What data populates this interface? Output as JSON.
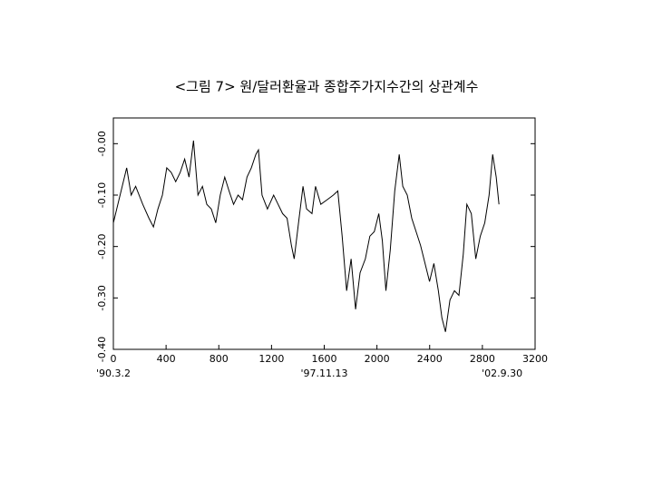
{
  "chart_data": {
    "type": "line",
    "title": "<그림 7> 원/달러환율과 종합주가지수간의 상관계수",
    "x": [
      0,
      34,
      101,
      135,
      169,
      223,
      270,
      304,
      338,
      372,
      405,
      439,
      473,
      507,
      541,
      574,
      608,
      642,
      676,
      709,
      743,
      777,
      811,
      845,
      878,
      912,
      946,
      980,
      1014,
      1047,
      1081,
      1101,
      1128,
      1169,
      1216,
      1250,
      1284,
      1318,
      1351,
      1372,
      1405,
      1439,
      1466,
      1507,
      1534,
      1574,
      1622,
      1669,
      1703,
      1736,
      1770,
      1804,
      1838,
      1872,
      1912,
      1946,
      1980,
      2014,
      2041,
      2068,
      2101,
      2135,
      2169,
      2196,
      2230,
      2264,
      2297,
      2331,
      2365,
      2399,
      2432,
      2466,
      2493,
      2520,
      2554,
      2588,
      2622,
      2655,
      2682,
      2716,
      2750,
      2784,
      2818,
      2851,
      2878,
      2905,
      2926
    ],
    "series": [
      {
        "color": "#000000",
        "values": [
          -0.154,
          -0.118,
          -0.047,
          -0.1,
          -0.083,
          -0.118,
          -0.145,
          -0.162,
          -0.127,
          -0.1,
          -0.047,
          -0.056,
          -0.074,
          -0.056,
          -0.03,
          -0.065,
          0.006,
          -0.1,
          -0.083,
          -0.118,
          -0.127,
          -0.154,
          -0.1,
          -0.065,
          -0.092,
          -0.118,
          -0.1,
          -0.109,
          -0.065,
          -0.047,
          -0.021,
          -0.012,
          -0.1,
          -0.127,
          -0.1,
          -0.118,
          -0.136,
          -0.145,
          -0.198,
          -0.224,
          -0.154,
          -0.083,
          -0.127,
          -0.136,
          -0.083,
          -0.118,
          -0.109,
          -0.1,
          -0.092,
          -0.18,
          -0.286,
          -0.224,
          -0.322,
          -0.251,
          -0.224,
          -0.18,
          -0.171,
          -0.136,
          -0.189,
          -0.286,
          -0.207,
          -0.092,
          -0.021,
          -0.083,
          -0.1,
          -0.145,
          -0.171,
          -0.198,
          -0.233,
          -0.268,
          -0.233,
          -0.286,
          -0.339,
          -0.366,
          -0.304,
          -0.286,
          -0.295,
          -0.215,
          -0.118,
          -0.136,
          -0.224,
          -0.18,
          -0.154,
          -0.1,
          -0.021,
          -0.065,
          -0.118
        ]
      }
    ],
    "xlim": [
      0,
      3200
    ],
    "xticks": [
      0,
      400,
      800,
      1200,
      1600,
      2000,
      2400,
      2800,
      3200
    ],
    "ylim": [
      -0.4,
      0.05
    ],
    "yticks": [
      {
        "value": -0.4,
        "label": "-0.40"
      },
      {
        "value": -0.3,
        "label": "-0.30"
      },
      {
        "value": -0.2,
        "label": "-0.20"
      },
      {
        "value": -0.1,
        "label": "-0.10"
      },
      {
        "value": 0,
        "label": "-0.00"
      }
    ],
    "date_labels": [
      {
        "value": 0,
        "label": "'90.3.2"
      },
      {
        "value": 1600,
        "label": "'97.11.13"
      },
      {
        "value": 2950,
        "label": "'02.9.30"
      }
    ]
  }
}
